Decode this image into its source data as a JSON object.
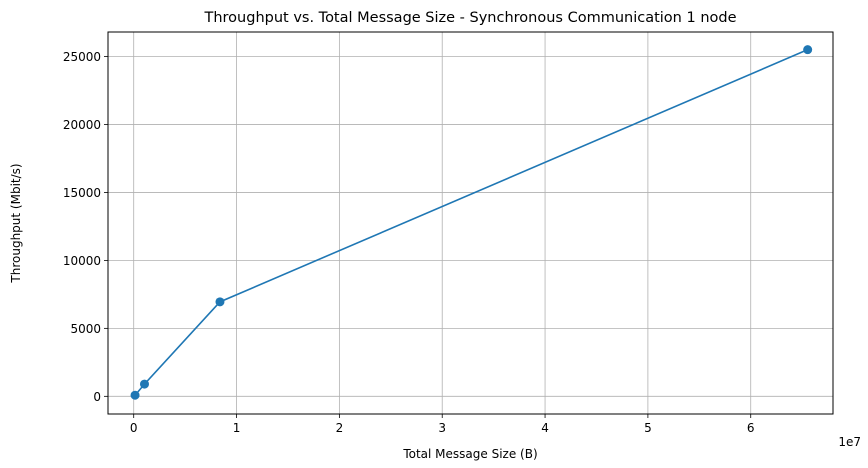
{
  "chart_data": {
    "type": "line",
    "title": "Throughput vs. Total Message Size - Synchronous Communication 1 node",
    "xlabel": "Total Message Size (B)",
    "ylabel": "Throughput (Mbit/s)",
    "x_offset_label": "1e7",
    "xlim": [
      -2500000,
      68000000
    ],
    "ylim": [
      -1300,
      26800
    ],
    "x_ticks": [
      0,
      10000000,
      20000000,
      30000000,
      40000000,
      50000000,
      60000000
    ],
    "x_tick_labels": [
      "0",
      "1",
      "2",
      "3",
      "4",
      "5",
      "6"
    ],
    "y_ticks": [
      0,
      5000,
      10000,
      15000,
      20000,
      25000
    ],
    "y_tick_labels": [
      "0",
      "5000",
      "10000",
      "15000",
      "20000",
      "25000"
    ],
    "grid": true,
    "series": [
      {
        "color": "#1f77b4",
        "marker": "circle",
        "x": [
          131072,
          1048576,
          8388608,
          65536000
        ],
        "y": [
          80,
          900,
          6950,
          25500
        ]
      }
    ]
  }
}
